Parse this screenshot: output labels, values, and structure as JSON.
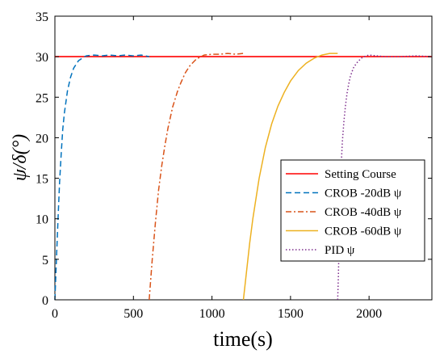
{
  "chart_data": {
    "type": "line",
    "xlabel": "time(s)",
    "ylabel": "ψ/δ(°)",
    "xlim": [
      0,
      2400
    ],
    "ylim": [
      0,
      35
    ],
    "x_ticks": [
      0,
      500,
      1000,
      1500,
      2000
    ],
    "y_ticks": [
      0,
      5,
      10,
      15,
      20,
      25,
      30,
      35
    ],
    "grid": false,
    "legend_position": "center-right",
    "series": [
      {
        "name": "Setting Course",
        "color": "#ff0000",
        "style": "solid",
        "x": [
          0,
          2400
        ],
        "y": [
          30,
          30
        ]
      },
      {
        "name": "CROB -20dB ψ",
        "color": "#0072bd",
        "style": "dashed",
        "x": [
          0,
          10,
          20,
          30,
          40,
          50,
          60,
          80,
          100,
          120,
          150,
          180,
          200,
          250,
          300,
          350,
          400,
          450,
          500,
          550,
          600
        ],
        "y": [
          0,
          5,
          10,
          14.5,
          18,
          21,
          23,
          25.8,
          27.5,
          28.6,
          29.5,
          29.9,
          30.1,
          30.2,
          30.1,
          30.2,
          30.1,
          30.2,
          30.1,
          30.2,
          30.0
        ]
      },
      {
        "name": "CROB -40dB ψ",
        "color": "#d95319",
        "style": "dashdot",
        "x": [
          600,
          620,
          640,
          660,
          680,
          700,
          720,
          750,
          780,
          800,
          830,
          860,
          900,
          950,
          1000,
          1050,
          1100,
          1150,
          1200
        ],
        "y": [
          0,
          5,
          9.5,
          13.5,
          16.5,
          19,
          21.2,
          23.8,
          25.7,
          26.7,
          28,
          28.9,
          29.7,
          30.2,
          30.3,
          30.3,
          30.4,
          30.3,
          30.4
        ]
      },
      {
        "name": "CROB -60dB ψ",
        "color": "#edb120",
        "style": "solid",
        "x": [
          1200,
          1220,
          1240,
          1260,
          1300,
          1340,
          1380,
          1420,
          1460,
          1500,
          1550,
          1600,
          1650,
          1700,
          1750,
          1800
        ],
        "y": [
          0,
          3.5,
          7,
          10,
          15,
          18.8,
          21.7,
          23.9,
          25.6,
          27,
          28.3,
          29.2,
          29.8,
          30.2,
          30.4,
          30.4
        ]
      },
      {
        "name": "PID ψ",
        "color": "#7e2f8e",
        "style": "dotted",
        "x": [
          1800,
          1805,
          1810,
          1815,
          1820,
          1830,
          1840,
          1850,
          1860,
          1870,
          1880,
          1900,
          1920,
          1950,
          1980,
          2000,
          2050,
          2100,
          2200,
          2300,
          2400
        ],
        "y": [
          0,
          3,
          8,
          12.5,
          15.5,
          19.5,
          22,
          24,
          25.5,
          26.6,
          27.5,
          28.6,
          29.2,
          29.8,
          30.1,
          30.2,
          30.1,
          30.0,
          30.0,
          30.1,
          30.0
        ]
      }
    ]
  }
}
